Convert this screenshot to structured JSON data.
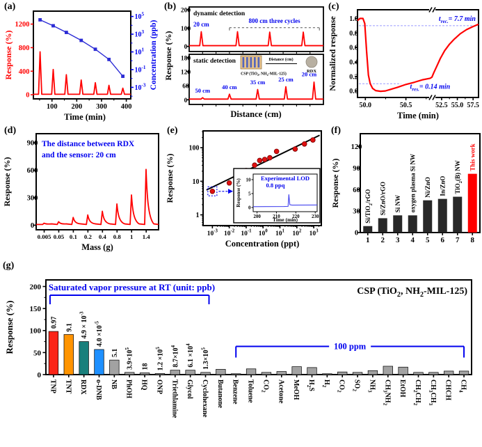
{
  "figure": {
    "bg": "#ffffff",
    "red": "#ff0000",
    "blue": "#0000ee",
    "line_blue": "#2b2bd5",
    "guide_blue": "#9a9aff",
    "gray_bar": "#a2a2a2",
    "dark_bar": "#282828"
  },
  "chart_data": [
    {
      "id": "a",
      "tag": "(a)",
      "type": "spikes+line",
      "ylabel_left": "Response (%)",
      "ylabel_right": "Concentration (ppb)",
      "xlabel": "Time (min)",
      "x_ticks": [
        100,
        200,
        300,
        400
      ],
      "xlim": [
        25,
        418
      ],
      "yl_ticks": [
        0,
        400,
        800,
        1200
      ],
      "yl_lim": [
        -70,
        1420
      ],
      "yr_tick_exps": [
        5,
        3,
        1,
        -1,
        -3
      ],
      "yr_lim_exps": [
        -4.3,
        5.6
      ],
      "spikes": [
        [
          52,
          730
        ],
        [
          105,
          430
        ],
        [
          158,
          340
        ],
        [
          218,
          250
        ],
        [
          275,
          205
        ],
        [
          330,
          160
        ],
        [
          386,
          112
        ]
      ],
      "conc_points_exp": [
        [
          52,
          4.62
        ],
        [
          105,
          3.95
        ],
        [
          158,
          3.2
        ],
        [
          218,
          2.3
        ],
        [
          275,
          1.3
        ],
        [
          330,
          0.15
        ],
        [
          386,
          -1.75
        ]
      ]
    },
    {
      "id": "b",
      "tag": "(b)",
      "type": "spikes-stacked",
      "ylabel": "Response (%)",
      "xlabel": "Distance (cm)",
      "top": {
        "label": "dynamic detection",
        "y_ticks": [
          0,
          100,
          200
        ],
        "ylim": [
          -28,
          215
        ],
        "spikes_xf_h": [
          [
            0.09,
            80
          ],
          [
            0.36,
            80
          ],
          [
            0.6,
            78
          ],
          [
            0.85,
            78
          ]
        ],
        "ann_first": "20 cm",
        "ann_cycles": {
          "text": "800 cm three cycles",
          "x1f": 0.3,
          "x2f": 0.97
        }
      },
      "bottom": {
        "label": "static detection",
        "y_ticks": [
          0,
          60,
          120,
          180
        ],
        "ylim": [
          -20,
          195
        ],
        "spikes_xf_h": [
          [
            0.1,
            9
          ],
          [
            0.3,
            24
          ],
          [
            0.51,
            44
          ],
          [
            0.72,
            56
          ],
          [
            0.93,
            76
          ]
        ],
        "spike_labels": [
          "50 cm",
          "40 cm",
          "35 cm",
          "25 cm",
          "20 cm"
        ],
        "inset": {
          "device_label": "CSP (TiO_2, NH_2-MIL-125)",
          "distance_label": "Distance (cm)",
          "target_label": "RDX"
        }
      }
    },
    {
      "id": "c",
      "tag": "(c)",
      "type": "line",
      "ylabel": "Normalized response",
      "xlabel": "Time (min)",
      "y_ticks": [
        0.0,
        0.2,
        0.4,
        0.6,
        0.8,
        1.0
      ],
      "ylim": [
        -0.09,
        1.12
      ],
      "x_ticks": [
        {
          "label": "50.0",
          "xf": 0.065
        },
        {
          "label": "50.5",
          "xf": 0.4
        },
        {
          "label": "52.5",
          "xf": 0.695
        },
        {
          "label": "55.0",
          "xf": 0.825
        },
        {
          "label": "57.5",
          "xf": 0.955
        }
      ],
      "x_minor_xf": [
        0.2325,
        0.5675,
        0.76,
        0.89
      ],
      "break_xf": 0.615,
      "guide_high": 0.9,
      "guide_low": 0.1,
      "ann_rec": "t_{rec.}= 7.7 min",
      "ann_res": "t_{res.}= 0.14 min",
      "curve": [
        [
          0.0,
          0.97
        ],
        [
          0.02,
          1.0
        ],
        [
          0.045,
          1.0
        ],
        [
          0.06,
          0.93
        ],
        [
          0.075,
          0.55
        ],
        [
          0.09,
          0.22
        ],
        [
          0.105,
          0.1
        ],
        [
          0.125,
          0.035
        ],
        [
          0.15,
          0.005
        ],
        [
          0.19,
          -0.005
        ],
        [
          0.23,
          0.0
        ],
        [
          0.27,
          0.02
        ],
        [
          0.33,
          0.05
        ],
        [
          0.4,
          0.09
        ],
        [
          0.47,
          0.12
        ],
        [
          0.54,
          0.155
        ],
        [
          0.6,
          0.175
        ],
        [
          0.615,
          0.19
        ],
        [
          0.63,
          0.25
        ],
        [
          0.655,
          0.34
        ],
        [
          0.685,
          0.45
        ],
        [
          0.72,
          0.555
        ],
        [
          0.76,
          0.645
        ],
        [
          0.8,
          0.715
        ],
        [
          0.85,
          0.79
        ],
        [
          0.9,
          0.845
        ],
        [
          0.95,
          0.885
        ],
        [
          1.0,
          0.92
        ]
      ]
    },
    {
      "id": "d",
      "tag": "(d)",
      "type": "spikes",
      "ylabel": "Response (%)",
      "xlabel": "Mass (g)",
      "annotation_line1": "The distance between RDX",
      "annotation_line2": "and the sensor: 20 cm",
      "y_ticks": [
        0,
        300,
        600,
        900
      ],
      "ylim": [
        -50,
        1000
      ],
      "x_tick_labels": [
        "0.005",
        "0.05",
        "0.1",
        "0.2",
        "0.4",
        "0.8",
        "1",
        "1.4"
      ],
      "spike_heights": [
        22,
        38,
        85,
        112,
        152,
        232,
        330,
        610
      ]
    },
    {
      "id": "e",
      "tag": "(e)",
      "type": "scatter",
      "ylabel": "Response (%)",
      "xlabel": "Concentration (ppt)",
      "x_exp_range": [
        -3.55,
        3.45
      ],
      "y_exp_range": [
        -0.32,
        2.5
      ],
      "x_tick_exps": [
        -3,
        -2,
        -1,
        0,
        1,
        2,
        3
      ],
      "y_tick_exps": [
        0,
        1,
        2
      ],
      "fit_line_log": [
        [
          -3.35,
          0.74
        ],
        [
          3.35,
          2.37
        ]
      ],
      "points_log": [
        [
          -3,
          0.7
        ],
        [
          -2,
          0.95
        ],
        [
          -1.55,
          1.08
        ],
        [
          -1,
          1.32
        ],
        [
          -0.5,
          1.48
        ],
        [
          -0.2,
          1.62
        ],
        [
          0.1,
          1.65
        ],
        [
          0.4,
          1.7
        ],
        [
          0.8,
          1.89
        ],
        [
          1.9,
          1.96
        ],
        [
          2.45,
          2.11
        ],
        [
          2.95,
          2.23
        ]
      ],
      "lod_point_index": 0,
      "inset": {
        "title1": "Experimental LOD",
        "title2": "0.8 ppq",
        "ylabel": "Response (%)",
        "xlabel": "Time (min)",
        "y_ticks": [
          0,
          5,
          10
        ],
        "x_ticks": [
          200,
          210,
          220,
          230
        ],
        "xlim": [
          198,
          231
        ],
        "ylim": [
          -1.5,
          12
        ],
        "line": [
          [
            198,
            0.3
          ],
          [
            214,
            0.35
          ],
          [
            216,
            0.4
          ],
          [
            216.4,
            4.7
          ],
          [
            216.9,
            1.0
          ],
          [
            218,
            0.85
          ],
          [
            231,
            0.9
          ]
        ]
      }
    },
    {
      "id": "f",
      "tag": "(f)",
      "type": "bar",
      "ylabel": "Response (%)",
      "y_ticks": [
        0,
        30,
        60,
        90,
        120
      ],
      "ylim": [
        0,
        138
      ],
      "x_tick_labels": [
        "1",
        "2",
        "3",
        "4",
        "5",
        "6",
        "7",
        "8"
      ],
      "bars": [
        {
          "label": "Si/TiO_2/rGO",
          "value": 9
        },
        {
          "label": "Si/ZnO/rGO",
          "value": 20
        },
        {
          "label": "Si NW",
          "value": 24
        },
        {
          "label": "oxygen plasma Si NW",
          "value": 24
        },
        {
          "label": "Ni/ZnO",
          "value": 45
        },
        {
          "label": "In/ZnO",
          "value": 47
        },
        {
          "label": "TiO_2(B) NW",
          "value": 50
        },
        {
          "label": "This work",
          "value": 82,
          "highlight": true
        }
      ]
    },
    {
      "id": "g",
      "tag": "(g)",
      "type": "bar",
      "ylabel": "Response (%)",
      "title": "CSP (TiO_2, NH_2-MIL-125)",
      "y_ticks": [
        0,
        50,
        100,
        150,
        200
      ],
      "ylim": [
        0,
        215
      ],
      "bracket_vp": {
        "label": "Saturated vapor pressure at RT (unit:  ppb)",
        "from": 0,
        "to": 10
      },
      "bracket_ppm": {
        "label": "100 ppm",
        "from": 12,
        "to": 27
      },
      "bars": [
        {
          "name": "TNP",
          "vp": "0.97",
          "value": 98,
          "color": "#fb2417"
        },
        {
          "name": "TNT",
          "vp": "9.1",
          "value": 91,
          "color": "#ff9400"
        },
        {
          "name": "RDX",
          "vp": "4.9 × 10^{-3}",
          "value": 75,
          "color": "#19807c"
        },
        {
          "name": "o-DNB",
          "vp": "4.0 ×10^{-5}",
          "value": 57,
          "color": "#1e90ff"
        },
        {
          "name": "NB",
          "vp": "5.1",
          "value": 33
        },
        {
          "name": "PhOH",
          "vp": "3.9×10^{5}",
          "value": 5
        },
        {
          "name": "HQ",
          "vp": "18",
          "value": 4
        },
        {
          "name": "ONP",
          "vp": "1.2 ×10^{5}",
          "value": 2.5
        },
        {
          "name": "Triethlamine",
          "vp": "8.7×10^{4}",
          "value": 10
        },
        {
          "name": "Glycol",
          "vp": "6.1 ×10^{4}",
          "value": 10
        },
        {
          "name": "Cyclohexane",
          "vp": "1.3×10^{5}",
          "value": 5
        },
        {
          "name": "Butanone",
          "value": 12
        },
        {
          "name": "Benzene",
          "value": 2
        },
        {
          "name": "Toluene",
          "value": 13
        },
        {
          "name": "CO_2",
          "value": 5
        },
        {
          "name": "Acetone",
          "value": 7
        },
        {
          "name": "MeOH",
          "value": 18
        },
        {
          "name": "H_2S",
          "value": 16
        },
        {
          "name": "H_2",
          "value": 2
        },
        {
          "name": "CO_2",
          "value": 6
        },
        {
          "name": "SO_2",
          "value": 5
        },
        {
          "name": "NH_3",
          "value": 9
        },
        {
          "name": "CH_3NH_2",
          "value": 19
        },
        {
          "name": "EtOH",
          "value": 17
        },
        {
          "name": "CH_2CH_2",
          "value": 5
        },
        {
          "name": "CH_3CH_3",
          "value": 5
        },
        {
          "name": "CHCH",
          "value": 8
        },
        {
          "name": "CH_4",
          "value": 8
        }
      ]
    }
  ]
}
